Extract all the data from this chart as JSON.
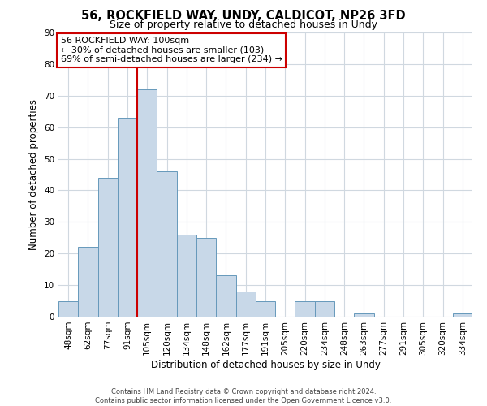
{
  "title": "56, ROCKFIELD WAY, UNDY, CALDICOT, NP26 3FD",
  "subtitle": "Size of property relative to detached houses in Undy",
  "xlabel": "Distribution of detached houses by size in Undy",
  "ylabel": "Number of detached properties",
  "bin_labels": [
    "48sqm",
    "62sqm",
    "77sqm",
    "91sqm",
    "105sqm",
    "120sqm",
    "134sqm",
    "148sqm",
    "162sqm",
    "177sqm",
    "191sqm",
    "205sqm",
    "220sqm",
    "234sqm",
    "248sqm",
    "263sqm",
    "277sqm",
    "291sqm",
    "305sqm",
    "320sqm",
    "334sqm"
  ],
  "bar_heights": [
    5,
    22,
    44,
    63,
    72,
    46,
    26,
    25,
    13,
    8,
    5,
    0,
    5,
    5,
    0,
    1,
    0,
    0,
    0,
    0,
    1
  ],
  "bar_color": "#c8d8e8",
  "bar_edge_color": "#6699bb",
  "vline_position": 3.5,
  "property_line_label": "56 ROCKFIELD WAY: 100sqm",
  "annotation_line1": "← 30% of detached houses are smaller (103)",
  "annotation_line2": "69% of semi-detached houses are larger (234) →",
  "annotation_box_color": "#ffffff",
  "annotation_box_edge_color": "#cc0000",
  "vline_color": "#cc0000",
  "ylim": [
    0,
    90
  ],
  "footer1": "Contains HM Land Registry data © Crown copyright and database right 2024.",
  "footer2": "Contains public sector information licensed under the Open Government Licence v3.0.",
  "background_color": "#ffffff",
  "grid_color": "#d0d8e0",
  "title_fontsize": 10.5,
  "subtitle_fontsize": 9,
  "axis_label_fontsize": 8.5,
  "tick_fontsize": 7.5,
  "annotation_fontsize": 8,
  "footer_fontsize": 6
}
